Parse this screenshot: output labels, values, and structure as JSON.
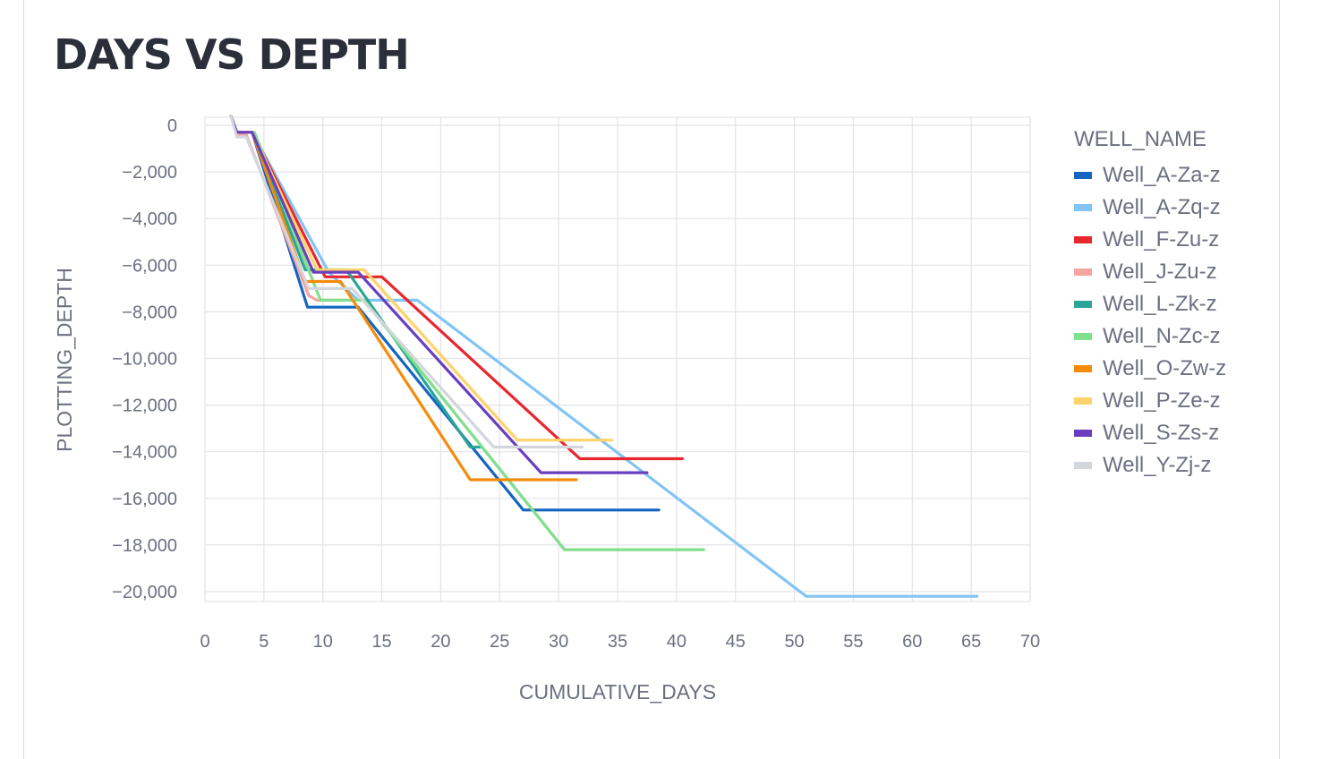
{
  "page": {
    "title": "DAYS VS DEPTH"
  },
  "chart_data": {
    "type": "line",
    "title": "DAYS VS DEPTH",
    "xlabel": "CUMULATIVE_DAYS",
    "ylabel": "PLOTTING_DEPTH",
    "xlim": [
      0,
      70
    ],
    "ylim": [
      -20000,
      0
    ],
    "x_ticks": [
      0,
      5,
      10,
      15,
      20,
      25,
      30,
      35,
      40,
      45,
      50,
      55,
      60,
      65,
      70
    ],
    "y_ticks": [
      0,
      -2000,
      -4000,
      -6000,
      -8000,
      -10000,
      -12000,
      -14000,
      -16000,
      -18000,
      -20000
    ],
    "x_tick_labels": [
      "0",
      "5",
      "10",
      "15",
      "20",
      "25",
      "30",
      "35",
      "40",
      "45",
      "50",
      "55",
      "60",
      "65",
      "70"
    ],
    "y_tick_labels": [
      "0",
      "−2,000",
      "−4,000",
      "−6,000",
      "−8,000",
      "−10,000",
      "−12,000",
      "−14,000",
      "−16,000",
      "−18,000",
      "−20,000"
    ],
    "grid": true,
    "legend_title": "WELL_NAME",
    "legend_position": "right",
    "series": [
      {
        "name": "Well_A-Za-z",
        "color": "#1565c0",
        "points": [
          [
            2.2,
            400
          ],
          [
            2.7,
            -300
          ],
          [
            4,
            -300
          ],
          [
            8.7,
            -7800
          ],
          [
            13,
            -7800
          ],
          [
            27,
            -16500
          ],
          [
            38.5,
            -16500
          ]
        ]
      },
      {
        "name": "Well_A-Zq-z",
        "color": "#82c4f5",
        "points": [
          [
            2.2,
            400
          ],
          [
            2.7,
            -300
          ],
          [
            4,
            -300
          ],
          [
            10.5,
            -6300
          ],
          [
            13,
            -7500
          ],
          [
            18,
            -7500
          ],
          [
            51,
            -20200
          ],
          [
            65.5,
            -20200
          ]
        ]
      },
      {
        "name": "Well_F-Zu-z",
        "color": "#e8262e",
        "points": [
          [
            2.2,
            400
          ],
          [
            2.7,
            -300
          ],
          [
            4,
            -300
          ],
          [
            10.2,
            -6500
          ],
          [
            15,
            -6500
          ],
          [
            31.8,
            -14300
          ],
          [
            40.5,
            -14300
          ]
        ]
      },
      {
        "name": "Well_J-Zu-z",
        "color": "#f5a4a0",
        "points": [
          [
            2.2,
            400
          ],
          [
            2.7,
            -400
          ],
          [
            3.5,
            -400
          ],
          [
            8.8,
            -7300
          ],
          [
            9.5,
            -7500
          ],
          [
            13.5,
            -7500
          ],
          [
            30.5,
            -18200
          ],
          [
            41.5,
            -18200
          ]
        ]
      },
      {
        "name": "Well_L-Zk-z",
        "color": "#2aa597",
        "points": [
          [
            2.2,
            400
          ],
          [
            2.7,
            -300
          ],
          [
            4,
            -300
          ],
          [
            8.5,
            -6200
          ],
          [
            12,
            -6200
          ],
          [
            22.5,
            -13800
          ],
          [
            23.5,
            -13800
          ]
        ]
      },
      {
        "name": "Well_N-Zc-z",
        "color": "#7fe08e",
        "points": [
          [
            2.2,
            400
          ],
          [
            2.7,
            -300
          ],
          [
            4.2,
            -300
          ],
          [
            9.8,
            -7500
          ],
          [
            13.5,
            -7500
          ],
          [
            30.5,
            -18200
          ],
          [
            42.3,
            -18200
          ]
        ]
      },
      {
        "name": "Well_O-Zw-z",
        "color": "#f58b0b",
        "points": [
          [
            2.2,
            400
          ],
          [
            2.7,
            -300
          ],
          [
            4,
            -300
          ],
          [
            8.5,
            -6700
          ],
          [
            11.5,
            -6700
          ],
          [
            22.5,
            -15200
          ],
          [
            31.5,
            -15200
          ]
        ]
      },
      {
        "name": "Well_P-Ze-z",
        "color": "#fdd36a",
        "points": [
          [
            2.2,
            400
          ],
          [
            2.7,
            -300
          ],
          [
            4,
            -300
          ],
          [
            9.5,
            -6200
          ],
          [
            13.5,
            -6200
          ],
          [
            26.5,
            -13500
          ],
          [
            34.5,
            -13500
          ]
        ]
      },
      {
        "name": "Well_S-Zs-z",
        "color": "#6a3fbf",
        "points": [
          [
            2.2,
            400
          ],
          [
            2.7,
            -300
          ],
          [
            4,
            -300
          ],
          [
            9.2,
            -6300
          ],
          [
            13,
            -6300
          ],
          [
            28.5,
            -14900
          ],
          [
            37.5,
            -14900
          ]
        ]
      },
      {
        "name": "Well_Y-Zj-z",
        "color": "#d4d6de",
        "points": [
          [
            2.2,
            400
          ],
          [
            2.7,
            -500
          ],
          [
            3.5,
            -500
          ],
          [
            8.8,
            -7000
          ],
          [
            12.5,
            -7000
          ],
          [
            24.5,
            -13800
          ],
          [
            32,
            -13800
          ]
        ]
      }
    ]
  }
}
